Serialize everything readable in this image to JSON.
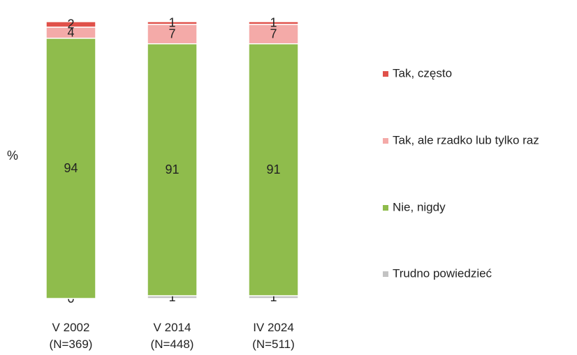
{
  "chart_data": {
    "type": "stacked-bar",
    "y_label": "%",
    "categories": [
      "V 2002\n(N=369)",
      "V 2014\n(N=448)",
      "IV 2024\n(N=511)"
    ],
    "series": [
      {
        "name": "Trudno powiedzieć",
        "color": "#c3c3c3",
        "values": [
          0,
          1,
          1
        ]
      },
      {
        "name": "Nie, nigdy",
        "color": "#8fbc4c",
        "values": [
          94,
          91,
          91
        ]
      },
      {
        "name": "Tak, ale rzadko lub tylko raz",
        "color": "#f4aaa8",
        "values": [
          4,
          7,
          7
        ]
      },
      {
        "name": "Tak, często",
        "color": "#e0514a",
        "values": [
          2,
          1,
          1
        ]
      }
    ],
    "ylim": [
      0,
      100
    ],
    "legend": "right"
  }
}
